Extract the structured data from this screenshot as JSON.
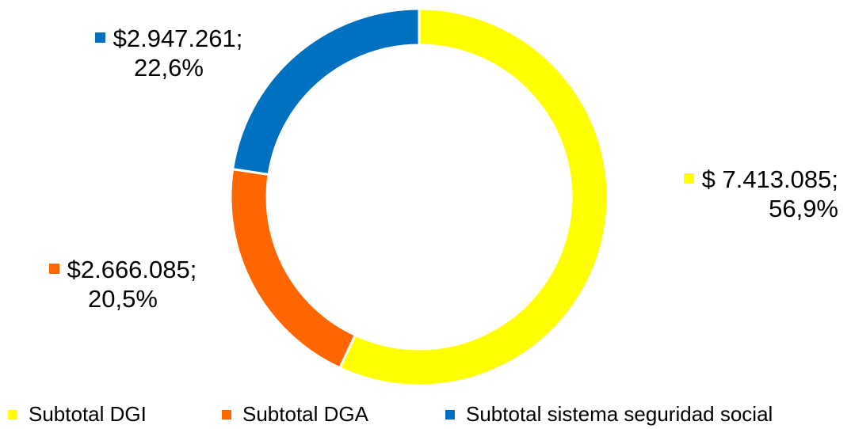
{
  "chart_data": {
    "type": "pie",
    "donut": true,
    "title": "",
    "series": [
      {
        "name": "",
        "slices": [
          {
            "label": "Subtotal DGI",
            "value": 7413085,
            "percent": 56.9,
            "value_text": "$ 7.413.085;",
            "percent_text": "56,9%",
            "color": "#FFFF00"
          },
          {
            "label": "Subtotal DGA",
            "value": 2666085,
            "percent": 20.5,
            "value_text": "$2.666.085;",
            "percent_text": "20,5%",
            "color": "#FF6600"
          },
          {
            "label": "Subtotal sistema seguridad social",
            "value": 2947261,
            "percent": 22.6,
            "value_text": "$2.947.261;",
            "percent_text": "22,6%",
            "color": "#0070C0"
          }
        ]
      }
    ],
    "legend": {
      "placement": "bottom",
      "entries": [
        "Subtotal DGI",
        "Subtotal DGA",
        "Subtotal sistema seguridad social"
      ]
    }
  }
}
